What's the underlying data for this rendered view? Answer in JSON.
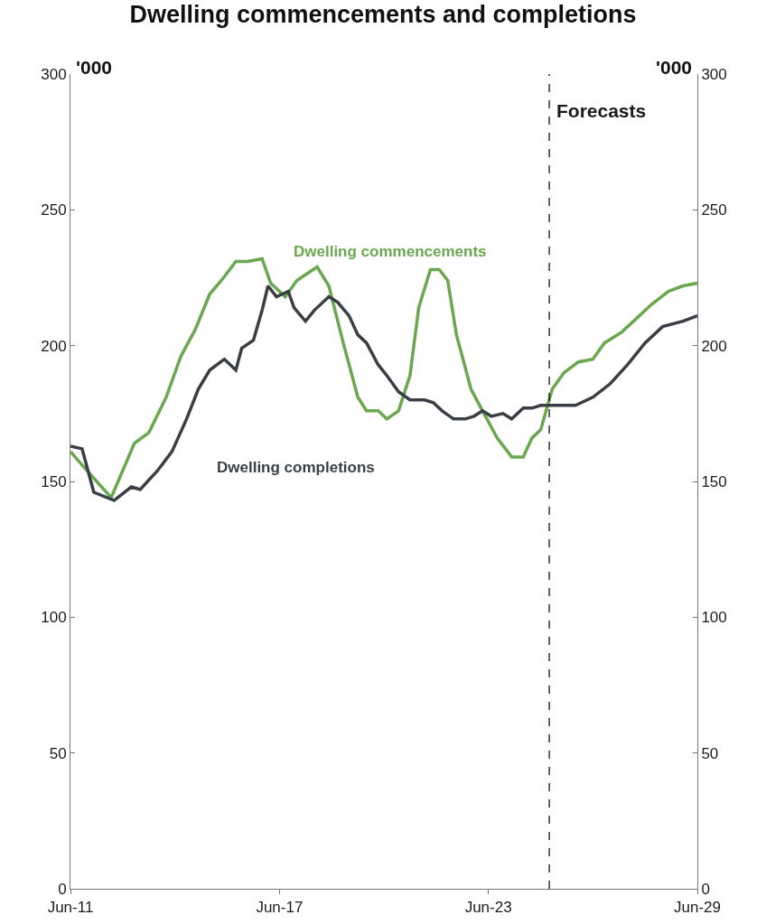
{
  "chart_data": {
    "type": "line",
    "title": "Dwelling commencements and completions",
    "ylabel": "'000",
    "y2label": "'000",
    "xlim": [
      "2011-06",
      "2029-06"
    ],
    "xticks": [
      {
        "value": "2011-06",
        "label": "Jun-11"
      },
      {
        "value": "2017-06",
        "label": "Jun-17"
      },
      {
        "value": "2023-06",
        "label": "Jun-23"
      },
      {
        "value": "2029-06",
        "label": "Jun-29"
      }
    ],
    "ylim": [
      0,
      300
    ],
    "yticks": [
      0,
      50,
      100,
      150,
      200,
      250,
      300
    ],
    "y2lim": [
      0,
      300
    ],
    "y2ticks": [
      0,
      50,
      100,
      150,
      200,
      250,
      300
    ],
    "legend": false,
    "marker": "none",
    "line_style": "solid",
    "ref_lines": [
      {
        "axis": "x",
        "value": "2025-03",
        "label": "Forecasts",
        "color": "#000000",
        "line_style": "dashed"
      }
    ],
    "series": [
      {
        "name": "Dwelling commencements",
        "color": "#6aa84f",
        "x": [
          "2011-06",
          "2011-10",
          "2012-08",
          "2013-04",
          "2013-09",
          "2014-03",
          "2014-08",
          "2015-01",
          "2015-06",
          "2015-10",
          "2016-03",
          "2016-07",
          "2016-12",
          "2017-03",
          "2017-08",
          "2017-12",
          "2018-07",
          "2018-11",
          "2019-04",
          "2019-09",
          "2019-12",
          "2020-04",
          "2020-07",
          "2020-11",
          "2021-03",
          "2021-06",
          "2021-10",
          "2022-01",
          "2022-04",
          "2022-07",
          "2022-12",
          "2023-04",
          "2023-09",
          "2024-02",
          "2024-06",
          "2024-09",
          "2024-12",
          "2025-04",
          "2025-08",
          "2026-01",
          "2026-06",
          "2026-10",
          "2027-04",
          "2027-09",
          "2028-02",
          "2028-08",
          "2029-01",
          "2029-06"
        ],
        "values": [
          161,
          156,
          144,
          164,
          168,
          181,
          196,
          206,
          219,
          224,
          231,
          231,
          232,
          223,
          218,
          224,
          229,
          222,
          201,
          181,
          176,
          176,
          173,
          176,
          189,
          214,
          228,
          228,
          224,
          204,
          184,
          176,
          166,
          159,
          159,
          166,
          169,
          184,
          190,
          194,
          195,
          201,
          205,
          210,
          215,
          220,
          222,
          223
        ]
      },
      {
        "name": "Dwelling completions",
        "color": "#3a3f45",
        "x": [
          "2011-06",
          "2011-10",
          "2012-02",
          "2012-09",
          "2013-03",
          "2013-06",
          "2013-12",
          "2014-05",
          "2014-10",
          "2015-02",
          "2015-06",
          "2015-11",
          "2016-03",
          "2016-05",
          "2016-09",
          "2016-12",
          "2017-02",
          "2017-05",
          "2017-09",
          "2017-11",
          "2018-03",
          "2018-06",
          "2018-11",
          "2019-02",
          "2019-06",
          "2019-09",
          "2019-12",
          "2020-04",
          "2020-07",
          "2020-11",
          "2021-03",
          "2021-08",
          "2021-11",
          "2022-02",
          "2022-06",
          "2022-10",
          "2023-01",
          "2023-04",
          "2023-07",
          "2023-11",
          "2024-02",
          "2024-06",
          "2024-09",
          "2024-12",
          "2025-04",
          "2025-12",
          "2026-06",
          "2026-12",
          "2027-06",
          "2027-12",
          "2028-06",
          "2029-01",
          "2029-06"
        ],
        "values": [
          163,
          162,
          146,
          143,
          148,
          147,
          154,
          161,
          173,
          184,
          191,
          195,
          191,
          199,
          202,
          213,
          222,
          218,
          220,
          214,
          209,
          213,
          218,
          216,
          211,
          204,
          201,
          193,
          189,
          183,
          180,
          180,
          179,
          176,
          173,
          173,
          174,
          176,
          174,
          175,
          173,
          177,
          177,
          178,
          178,
          178,
          181,
          186,
          193,
          201,
          207,
          209,
          211
        ]
      }
    ]
  }
}
